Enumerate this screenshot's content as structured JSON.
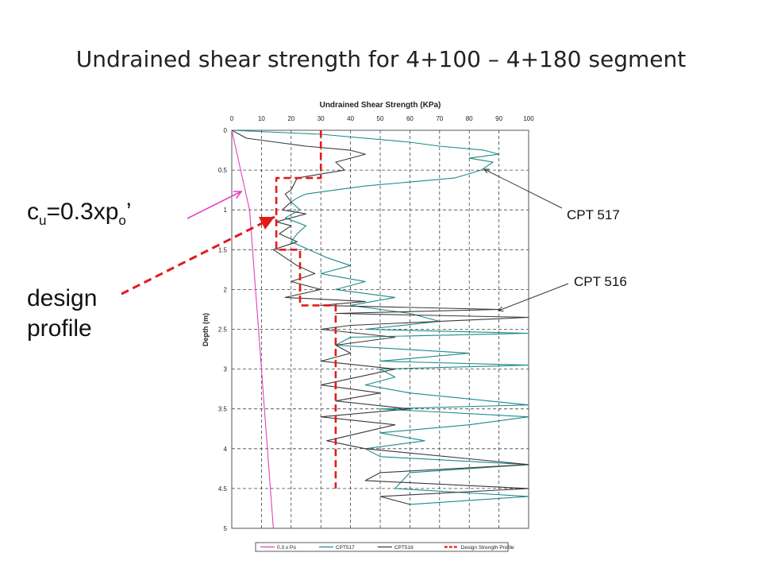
{
  "slide": {
    "title": "Undrained shear strength for 4+100 – 4+180 segment"
  },
  "callouts": {
    "cu_main": "c",
    "cu_sub1": "u",
    "cu_mid": "=0.3xp",
    "cu_sub2": "o",
    "cu_tail": "’",
    "design_line1": "design",
    "design_line2": "profile",
    "cpt517": "CPT 517",
    "cpt516": "CPT 516"
  },
  "colors": {
    "cu_arrow": "#e83fbe",
    "design_arrow": "#e11b1b",
    "cpt_arrow": "#333333"
  },
  "chart_data": {
    "type": "line",
    "title": "Undrained Shear Strength (KPa)",
    "ylabel": "Depth (m)",
    "xlim": [
      0,
      100
    ],
    "ylim": [
      0,
      5
    ],
    "y_inverted": true,
    "x_axis_position": "top",
    "grid": true,
    "legend_position": "bottom",
    "xticks": [
      "0",
      "10",
      "20",
      "30",
      "40",
      "50",
      "60",
      "70",
      "80",
      "90",
      "100"
    ],
    "yticks": [
      "0",
      "0.5",
      "1",
      "1.5",
      "2",
      "2.5",
      "3",
      "3.5",
      "4",
      "4.5",
      "5"
    ],
    "series": [
      {
        "name": "0.3 x Po",
        "color": "#e83fbe",
        "style": "solid",
        "points": [
          [
            0,
            0
          ],
          [
            3,
            0.5
          ],
          [
            6,
            1
          ],
          [
            7,
            1.5
          ],
          [
            8,
            2
          ],
          [
            9,
            2.5
          ],
          [
            10,
            3
          ],
          [
            11,
            3.5
          ],
          [
            12,
            4
          ],
          [
            13,
            4.5
          ],
          [
            14,
            5
          ]
        ]
      },
      {
        "name": "CPT517",
        "color": "#1f8a8a",
        "style": "solid",
        "points": [
          [
            0,
            0
          ],
          [
            30,
            0.05
          ],
          [
            60,
            0.15
          ],
          [
            70,
            0.2
          ],
          [
            85,
            0.25
          ],
          [
            90,
            0.3
          ],
          [
            80,
            0.35
          ],
          [
            88,
            0.4
          ],
          [
            84,
            0.5
          ],
          [
            75,
            0.6
          ],
          [
            60,
            0.65
          ],
          [
            45,
            0.7
          ],
          [
            35,
            0.75
          ],
          [
            25,
            0.8
          ],
          [
            22,
            0.85
          ],
          [
            20,
            0.9
          ],
          [
            23,
            1
          ],
          [
            18,
            1.1
          ],
          [
            25,
            1.2
          ],
          [
            22,
            1.3
          ],
          [
            20,
            1.4
          ],
          [
            26,
            1.5
          ],
          [
            32,
            1.6
          ],
          [
            40,
            1.7
          ],
          [
            30,
            1.8
          ],
          [
            45,
            1.9
          ],
          [
            35,
            2.0
          ],
          [
            55,
            2.1
          ],
          [
            40,
            2.2
          ],
          [
            60,
            2.3
          ],
          [
            70,
            2.4
          ],
          [
            45,
            2.5
          ],
          [
            100,
            2.55
          ],
          [
            40,
            2.6
          ],
          [
            35,
            2.7
          ],
          [
            80,
            2.8
          ],
          [
            50,
            2.9
          ],
          [
            100,
            2.95
          ],
          [
            50,
            3.0
          ],
          [
            55,
            3.1
          ],
          [
            45,
            3.2
          ],
          [
            60,
            3.3
          ],
          [
            100,
            3.45
          ],
          [
            50,
            3.5
          ],
          [
            100,
            3.6
          ],
          [
            80,
            3.7
          ],
          [
            50,
            3.8
          ],
          [
            65,
            3.9
          ],
          [
            45,
            4.0
          ],
          [
            50,
            4.1
          ],
          [
            100,
            4.2
          ],
          [
            60,
            4.3
          ],
          [
            55,
            4.5
          ],
          [
            100,
            4.6
          ],
          [
            60,
            4.7
          ]
        ]
      },
      {
        "name": "CPT516",
        "color": "#3a3a3a",
        "style": "solid",
        "points": [
          [
            0,
            0
          ],
          [
            5,
            0.1
          ],
          [
            15,
            0.15
          ],
          [
            25,
            0.2
          ],
          [
            40,
            0.25
          ],
          [
            45,
            0.3
          ],
          [
            35,
            0.4
          ],
          [
            38,
            0.5
          ],
          [
            30,
            0.55
          ],
          [
            22,
            0.6
          ],
          [
            20,
            0.75
          ],
          [
            18,
            0.8
          ],
          [
            20,
            0.9
          ],
          [
            17,
            1.0
          ],
          [
            25,
            1.05
          ],
          [
            15,
            1.15
          ],
          [
            20,
            1.2
          ],
          [
            16,
            1.3
          ],
          [
            22,
            1.4
          ],
          [
            14,
            1.5
          ],
          [
            18,
            1.6
          ],
          [
            22,
            1.7
          ],
          [
            28,
            1.8
          ],
          [
            20,
            1.9
          ],
          [
            30,
            2.0
          ],
          [
            18,
            2.1
          ],
          [
            45,
            2.15
          ],
          [
            30,
            2.2
          ],
          [
            90,
            2.25
          ],
          [
            35,
            2.3
          ],
          [
            100,
            2.35
          ],
          [
            40,
            2.45
          ],
          [
            30,
            2.5
          ],
          [
            55,
            2.6
          ],
          [
            35,
            2.7
          ],
          [
            40,
            2.8
          ],
          [
            30,
            2.9
          ],
          [
            55,
            3.0
          ],
          [
            30,
            3.2
          ],
          [
            50,
            3.3
          ],
          [
            35,
            3.4
          ],
          [
            60,
            3.5
          ],
          [
            30,
            3.6
          ],
          [
            55,
            3.7
          ],
          [
            32,
            3.9
          ],
          [
            45,
            4.0
          ],
          [
            100,
            4.2
          ],
          [
            50,
            4.3
          ],
          [
            45,
            4.4
          ],
          [
            100,
            4.5
          ],
          [
            50,
            4.6
          ],
          [
            60,
            4.7
          ]
        ]
      },
      {
        "name": "Design Strength Profile",
        "color": "#e11b1b",
        "style": "dashed",
        "points": [
          [
            30,
            0
          ],
          [
            30,
            0.6
          ],
          [
            15,
            0.6
          ],
          [
            15,
            1.5
          ],
          [
            23,
            1.5
          ],
          [
            23,
            2.2
          ],
          [
            35,
            2.2
          ],
          [
            35,
            4.5
          ]
        ]
      }
    ]
  }
}
